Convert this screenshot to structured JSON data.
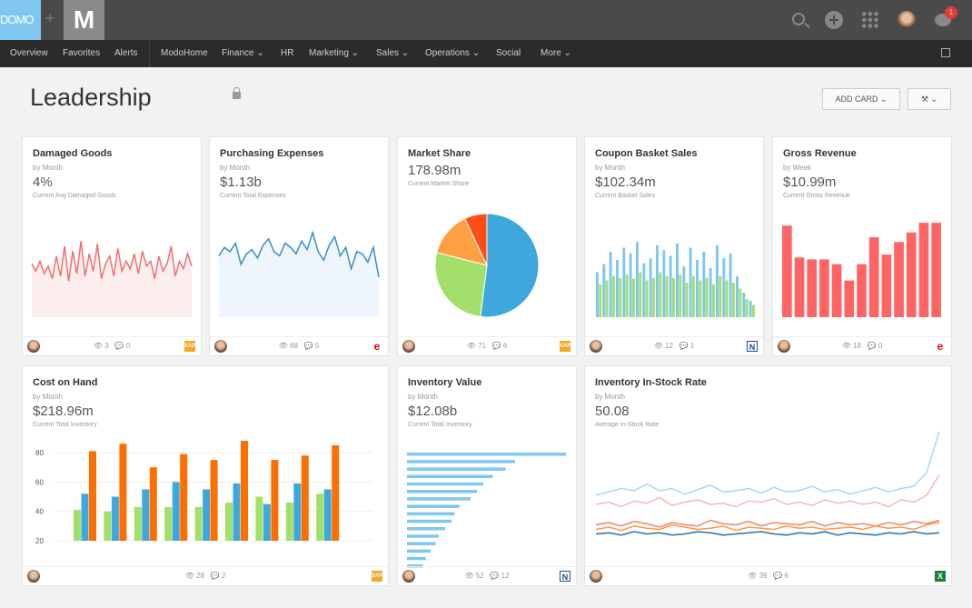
{
  "app": {
    "logo": "DOMO",
    "plus": "+",
    "m_logo": "M",
    "notification_count": "1"
  },
  "nav": [
    "Overview",
    "Favorites",
    "Alerts",
    "ModoHome",
    "Finance ⌄",
    "HR",
    "Marketing ⌄",
    "Sales ⌄",
    "Operations ⌄",
    "Social",
    "More ⌄"
  ],
  "page": {
    "title": "Leadership",
    "add_card": "ADD CARD ⌄",
    "wrench": "⚒ ⌄"
  },
  "colors": {
    "blue": "#3ea8dc",
    "green": "#a3e06b",
    "orange": "#ff6f00",
    "red": "#ff6464",
    "lightblue": "#7fc7ee"
  },
  "cards": [
    {
      "title": "Damaged Goods",
      "sub": "by Month",
      "value": "4%",
      "label": "Current Avg Damaged Goods",
      "views": "3",
      "comments": "0",
      "source": "SAP"
    },
    {
      "title": "Purchasing Expenses",
      "sub": "by Month",
      "value": "$1.13b",
      "label": "Current Total Expenses",
      "views": "68",
      "comments": "5",
      "source": "e"
    },
    {
      "title": "Market Share",
      "sub": "",
      "value": "178.98m",
      "label": "Current Market Share",
      "views": "71",
      "comments": "6",
      "source": "SAP"
    },
    {
      "title": "Coupon Basket Sales",
      "sub": "by Month",
      "value": "$102.34m",
      "label": "Current Basket Sales",
      "views": "12",
      "comments": "1",
      "source": "N"
    },
    {
      "title": "Gross Revenue",
      "sub": "by Week",
      "value": "$10.99m",
      "label": "Current Gross Revenue",
      "views": "18",
      "comments": "0",
      "source": "e"
    },
    {
      "title": "Cost on Hand",
      "sub": "by Month",
      "value": "$218.96m",
      "label": "Current Total Inventory",
      "views": "28",
      "comments": "2",
      "source": "SAP"
    },
    {
      "title": "Inventory Value",
      "sub": "by Month",
      "value": "$12.08b",
      "label": "Current Total Inventory",
      "views": "52",
      "comments": "12",
      "source": "N"
    },
    {
      "title": "Inventory In-Stock Rate",
      "sub": "by Month",
      "value": "50.08",
      "label": "Average In-Stock Rate",
      "views": "39",
      "comments": "6",
      "source": "X"
    }
  ],
  "chart_data": [
    {
      "type": "area",
      "card": "Damaged Goods",
      "values": [
        3.5,
        3.2,
        3.6,
        3.1,
        3.4,
        2.9,
        3.8,
        3.0,
        4.2,
        2.8,
        4.0,
        3.1,
        4.4,
        3.0,
        3.9,
        3.2,
        4.3,
        2.9,
        3.5,
        3.8,
        3.0,
        4.1,
        3.2,
        3.6,
        3.3,
        3.9,
        3.1,
        4.0,
        3.4,
        3.6,
        2.9,
        3.8,
        3.2,
        3.5,
        4.2,
        3.0,
        3.6,
        3.3,
        3.9,
        3.4
      ]
    },
    {
      "type": "area",
      "card": "Purchasing Expenses",
      "values": [
        70,
        74,
        72,
        76,
        66,
        71,
        73,
        69,
        75,
        78,
        72,
        70,
        76,
        74,
        71,
        77,
        73,
        81,
        72,
        68,
        75,
        79,
        70,
        74,
        64,
        72,
        71,
        67,
        74,
        60
      ]
    },
    {
      "type": "pie",
      "card": "Market Share",
      "values": [
        52,
        27,
        14,
        7
      ]
    },
    {
      "type": "bar",
      "card": "Coupon Basket Sales",
      "series": [
        {
          "values": [
            55,
            65,
            80,
            70,
            85,
            78,
            92,
            66,
            72,
            88,
            82,
            75,
            90,
            62,
            85,
            70,
            80,
            60,
            88,
            72,
            78,
            50,
            30,
            20
          ]
        },
        {
          "values": [
            40,
            45,
            50,
            48,
            52,
            47,
            55,
            45,
            48,
            55,
            50,
            48,
            52,
            42,
            50,
            45,
            48,
            40,
            50,
            45,
            42,
            35,
            22,
            15
          ]
        }
      ]
    },
    {
      "type": "bar",
      "card": "Gross Revenue",
      "values": [
        95,
        62,
        60,
        60,
        55,
        38,
        55,
        83,
        65,
        78,
        88,
        98,
        98
      ]
    },
    {
      "type": "bar",
      "card": "Cost on Hand",
      "ylim": [
        20,
        90
      ],
      "yticks": [
        "20",
        "40",
        "60",
        "80"
      ],
      "series": [
        {
          "values": [
            41,
            40,
            43,
            43,
            43,
            46,
            50,
            46,
            52
          ]
        },
        {
          "values": [
            52,
            50,
            55,
            60,
            55,
            59,
            45,
            59,
            55
          ]
        },
        {
          "values": [
            81,
            86,
            70,
            79,
            75,
            88,
            75,
            78,
            85
          ]
        }
      ]
    },
    {
      "type": "bar",
      "card": "Inventory Value",
      "orientation": "horizontal",
      "values": [
        100,
        68,
        62,
        54,
        48,
        44,
        40,
        33,
        30,
        28,
        24,
        20,
        18,
        15,
        12,
        10
      ]
    },
    {
      "type": "line",
      "card": "Inventory In-Stock Rate",
      "series": [
        {
          "color": "#a8d8f0",
          "values": [
            40,
            43,
            46,
            44,
            50,
            44,
            46,
            41,
            45,
            49,
            43,
            44,
            46,
            42,
            47,
            43,
            44,
            48,
            43,
            45,
            41,
            44,
            47,
            43,
            46,
            48,
            60,
            96
          ]
        },
        {
          "color": "#f4b9b2",
          "values": [
            32,
            34,
            30,
            35,
            33,
            38,
            31,
            34,
            36,
            32,
            33,
            30,
            35,
            34,
            37,
            32,
            34,
            31,
            36,
            33,
            35,
            32,
            34,
            30,
            36,
            34,
            40,
            58
          ]
        },
        {
          "color": "#f08070",
          "values": [
            14,
            16,
            13,
            17,
            15,
            12,
            16,
            14,
            13,
            18,
            15,
            14,
            17,
            13,
            16,
            15,
            14,
            17,
            13,
            16,
            14,
            15,
            13,
            16,
            14,
            17,
            15,
            18
          ]
        },
        {
          "color": "#ff9a40",
          "values": [
            10,
            12,
            9,
            13,
            11,
            10,
            14,
            12,
            10,
            11,
            13,
            9,
            12,
            11,
            10,
            13,
            11,
            12,
            10,
            11,
            12,
            10,
            13,
            11,
            12,
            10,
            14,
            16
          ]
        },
        {
          "color": "#2a6fa8",
          "values": [
            6,
            7,
            5,
            8,
            6,
            7,
            5,
            6,
            8,
            7,
            5,
            6,
            7,
            8,
            6,
            5,
            7,
            6,
            8,
            5,
            7,
            6,
            5,
            7,
            6,
            8,
            6,
            7
          ]
        }
      ]
    }
  ]
}
